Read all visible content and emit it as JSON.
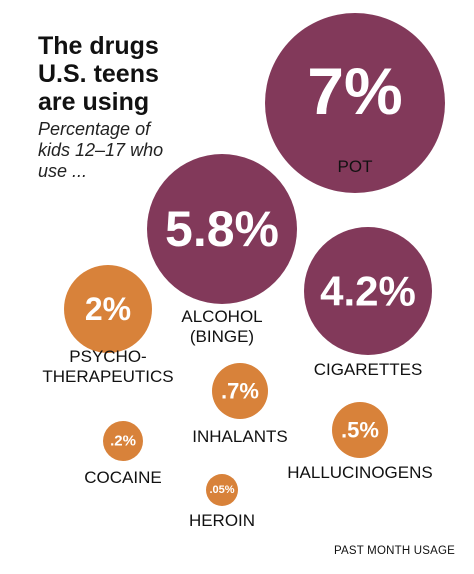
{
  "title": "The drugs U.S. teens are using",
  "subtitle": "Percentage of kids 12–17 who use ...",
  "note": "PAST MONTH USAGE",
  "colors": {
    "high": "#82395a",
    "low": "#d8823a"
  },
  "chart_data": {
    "type": "bubble",
    "unit": "%",
    "categories": [
      "POT",
      "ALCOHOL (BINGE)",
      "CIGARETTES",
      "PSYCHO-THERAPEUTICS",
      "INHALANTS",
      "HALLUCINOGENS",
      "COCAINE",
      "HEROIN"
    ],
    "values": [
      7,
      5.8,
      4.2,
      2,
      0.7,
      0.5,
      0.2,
      0.05
    ],
    "value_labels": [
      "7%",
      "5.8%",
      "4.2%",
      "2%",
      ".7%",
      ".5%",
      ".2%",
      ".05%"
    ],
    "label_lines": [
      [
        "POT"
      ],
      [
        "ALCOHOL",
        "(BINGE)"
      ],
      [
        "CIGARETTES"
      ],
      [
        "PSYCHO-",
        "THERAPEUTICS"
      ],
      [
        "INHALANTS"
      ],
      [
        "HALLUCINOGENS"
      ],
      [
        "COCAINE"
      ],
      [
        "HEROIN"
      ]
    ]
  }
}
